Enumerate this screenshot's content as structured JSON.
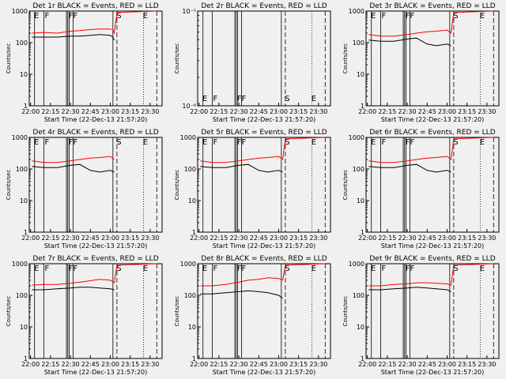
{
  "start_time_label": "Start Time (22-Dec-13 21:57:20)",
  "ylabel": "Counts/sec",
  "x_ticks": [
    "22:00",
    "22:15",
    "22:30",
    "22:45",
    "23:00",
    "23:15",
    "23:30"
  ],
  "marker_labels": [
    "E",
    "F",
    "FF",
    "S",
    "E"
  ],
  "colors": {
    "events": "#000000",
    "lld": "#ff0000",
    "background": "#f0f0f0"
  },
  "chart_data": [
    {
      "type": "line",
      "title": "Det 1r BLACK = Events, RED = LLD",
      "yscale": "log",
      "ylim": [
        1,
        1000
      ],
      "y_ticks": [
        "1",
        "10",
        "100",
        "1000"
      ],
      "variant": "normal",
      "markers": true,
      "series": [
        {
          "name": "BLACK = Events",
          "color": "#000000",
          "x": [
            "22:01",
            "22:10",
            "22:20",
            "22:30",
            "22:37",
            "22:45",
            "22:52",
            "23:00",
            "23:02",
            "23:03"
          ],
          "values": [
            150,
            150,
            150,
            160,
            160,
            170,
            180,
            170,
            150,
            120
          ]
        },
        {
          "name": "RED = LLD",
          "color": "#ff0000",
          "x": [
            "22:01",
            "22:10",
            "22:20",
            "22:30",
            "22:37",
            "22:45",
            "22:52",
            "23:00",
            "23:02",
            "23:03",
            "23:05",
            "23:35"
          ],
          "values": [
            200,
            210,
            200,
            230,
            240,
            260,
            270,
            270,
            250,
            200,
            900,
            1000
          ]
        }
      ]
    },
    {
      "type": "line",
      "title": "Det 2r BLACK = Events, RED = LLD",
      "yscale": "log",
      "ylim": [
        1e-06,
        1e-05
      ],
      "y_ticks": [
        "10⁻⁶",
        "10⁻⁵"
      ],
      "variant": "empty",
      "markers": true,
      "series": []
    },
    {
      "type": "line",
      "title": "Det 3r BLACK = Events, RED = LLD",
      "yscale": "log",
      "ylim": [
        1,
        1000
      ],
      "y_ticks": [
        "1",
        "10",
        "100",
        "1000"
      ],
      "variant": "normal",
      "markers": true,
      "series": [
        {
          "name": "BLACK = Events",
          "color": "#000000",
          "x": [
            "22:01",
            "22:10",
            "22:20",
            "22:30",
            "22:37",
            "22:45",
            "22:52",
            "23:00",
            "23:03"
          ],
          "values": [
            120,
            110,
            110,
            130,
            140,
            90,
            80,
            90,
            80
          ]
        },
        {
          "name": "RED = LLD",
          "color": "#ff0000",
          "x": [
            "22:01",
            "22:10",
            "22:20",
            "22:30",
            "22:37",
            "22:45",
            "22:52",
            "23:00",
            "23:03",
            "23:05",
            "23:35"
          ],
          "values": [
            180,
            160,
            160,
            180,
            200,
            220,
            230,
            250,
            200,
            900,
            1000
          ]
        }
      ]
    },
    {
      "type": "line",
      "title": "Det 4r BLACK = Events, RED = LLD",
      "yscale": "log",
      "ylim": [
        1,
        1000
      ],
      "y_ticks": [
        "1",
        "10",
        "100",
        "1000"
      ],
      "variant": "normal",
      "markers": true,
      "series": [
        {
          "name": "BLACK = Events",
          "color": "#000000",
          "x": [
            "22:01",
            "22:10",
            "22:20",
            "22:30",
            "22:37",
            "22:45",
            "22:52",
            "23:00",
            "23:03"
          ],
          "values": [
            120,
            110,
            110,
            130,
            140,
            90,
            80,
            90,
            80
          ]
        },
        {
          "name": "RED = LLD",
          "color": "#ff0000",
          "x": [
            "22:01",
            "22:10",
            "22:20",
            "22:30",
            "22:37",
            "22:45",
            "22:52",
            "23:00",
            "23:03"
          ],
          "values": [
            180,
            160,
            160,
            180,
            200,
            220,
            230,
            250,
            200
          ]
        }
      ]
    },
    {
      "type": "line",
      "title": "Det 5r BLACK = Events, RED = LLD",
      "yscale": "log",
      "ylim": [
        1,
        1000
      ],
      "y_ticks": [
        "1",
        "10",
        "100",
        "1000"
      ],
      "variant": "normal",
      "markers": true,
      "series": [
        {
          "name": "BLACK = Events",
          "color": "#000000",
          "x": [
            "22:01",
            "22:10",
            "22:20",
            "22:30",
            "22:37",
            "22:45",
            "22:52",
            "23:00",
            "23:03"
          ],
          "values": [
            120,
            110,
            110,
            130,
            140,
            90,
            80,
            90,
            80
          ]
        },
        {
          "name": "RED = LLD",
          "color": "#ff0000",
          "x": [
            "22:01",
            "22:10",
            "22:20",
            "22:30",
            "22:37",
            "22:45",
            "22:52",
            "23:00",
            "23:03",
            "23:05",
            "23:35"
          ],
          "values": [
            180,
            160,
            160,
            180,
            200,
            220,
            230,
            250,
            200,
            900,
            1000
          ]
        }
      ]
    },
    {
      "type": "line",
      "title": "Det 6r BLACK = Events, RED = LLD",
      "yscale": "log",
      "ylim": [
        1,
        1000
      ],
      "y_ticks": [
        "1",
        "10",
        "100",
        "1000"
      ],
      "variant": "normal",
      "markers": true,
      "series": [
        {
          "name": "BLACK = Events",
          "color": "#000000",
          "x": [
            "22:01",
            "22:10",
            "22:20",
            "22:30",
            "22:37",
            "22:45",
            "22:52",
            "23:00",
            "23:03"
          ],
          "values": [
            120,
            110,
            110,
            130,
            140,
            90,
            80,
            90,
            80
          ]
        },
        {
          "name": "RED = LLD",
          "color": "#ff0000",
          "x": [
            "22:01",
            "22:10",
            "22:20",
            "22:30",
            "22:37",
            "22:45",
            "22:52",
            "23:00",
            "23:03",
            "23:05",
            "23:35"
          ],
          "values": [
            180,
            160,
            160,
            180,
            200,
            220,
            230,
            250,
            200,
            900,
            1000
          ]
        }
      ]
    },
    {
      "type": "line",
      "title": "Det 7r BLACK = Events, RED = LLD",
      "yscale": "log",
      "ylim": [
        1,
        1000
      ],
      "y_ticks": [
        "1",
        "10",
        "100",
        "1000"
      ],
      "variant": "normal",
      "markers": true,
      "series": [
        {
          "name": "BLACK = Events",
          "color": "#000000",
          "x": [
            "22:01",
            "22:10",
            "22:20",
            "22:30",
            "22:37",
            "22:45",
            "22:52",
            "23:00",
            "23:03"
          ],
          "values": [
            150,
            150,
            160,
            170,
            180,
            180,
            170,
            160,
            150
          ]
        },
        {
          "name": "RED = LLD",
          "color": "#ff0000",
          "x": [
            "22:01",
            "22:10",
            "22:20",
            "22:30",
            "22:37",
            "22:45",
            "22:52",
            "23:00",
            "23:03",
            "23:05",
            "23:35"
          ],
          "values": [
            210,
            220,
            220,
            240,
            260,
            290,
            320,
            300,
            250,
            900,
            1000
          ]
        }
      ]
    },
    {
      "type": "line",
      "title": "Det 8r BLACK = Events, RED = LLD",
      "yscale": "log",
      "ylim": [
        1,
        1000
      ],
      "y_ticks": [
        "1",
        "10",
        "100",
        "1000"
      ],
      "variant": "normal",
      "markers": true,
      "series": [
        {
          "name": "BLACK = Events",
          "color": "#000000",
          "x": [
            "22:01",
            "22:10",
            "22:20",
            "22:30",
            "22:37",
            "22:45",
            "22:52",
            "23:00",
            "23:03"
          ],
          "values": [
            110,
            110,
            120,
            130,
            140,
            130,
            120,
            100,
            80
          ]
        },
        {
          "name": "RED = LLD",
          "color": "#ff0000",
          "x": [
            "22:01",
            "22:10",
            "22:20",
            "22:30",
            "22:37",
            "22:45",
            "22:52",
            "23:00",
            "23:03",
            "23:05",
            "23:35"
          ],
          "values": [
            200,
            200,
            220,
            260,
            300,
            320,
            360,
            340,
            300,
            900,
            1000
          ]
        }
      ]
    },
    {
      "type": "line",
      "title": "Det 9r BLACK = Events, RED = LLD",
      "yscale": "log",
      "ylim": [
        1,
        1000
      ],
      "y_ticks": [
        "1",
        "10",
        "100",
        "1000"
      ],
      "variant": "normal",
      "markers": true,
      "series": [
        {
          "name": "BLACK = Events",
          "color": "#000000",
          "x": [
            "22:01",
            "22:10",
            "22:20",
            "22:30",
            "22:37",
            "22:45",
            "22:52",
            "23:00",
            "23:03"
          ],
          "values": [
            150,
            150,
            160,
            170,
            180,
            170,
            160,
            150,
            130
          ]
        },
        {
          "name": "RED = LLD",
          "color": "#ff0000",
          "x": [
            "22:01",
            "22:10",
            "22:20",
            "22:30",
            "22:37",
            "22:45",
            "22:52",
            "23:00",
            "23:03",
            "23:05",
            "23:35"
          ],
          "values": [
            200,
            200,
            220,
            230,
            250,
            250,
            240,
            230,
            210,
            900,
            1000
          ]
        }
      ]
    }
  ]
}
